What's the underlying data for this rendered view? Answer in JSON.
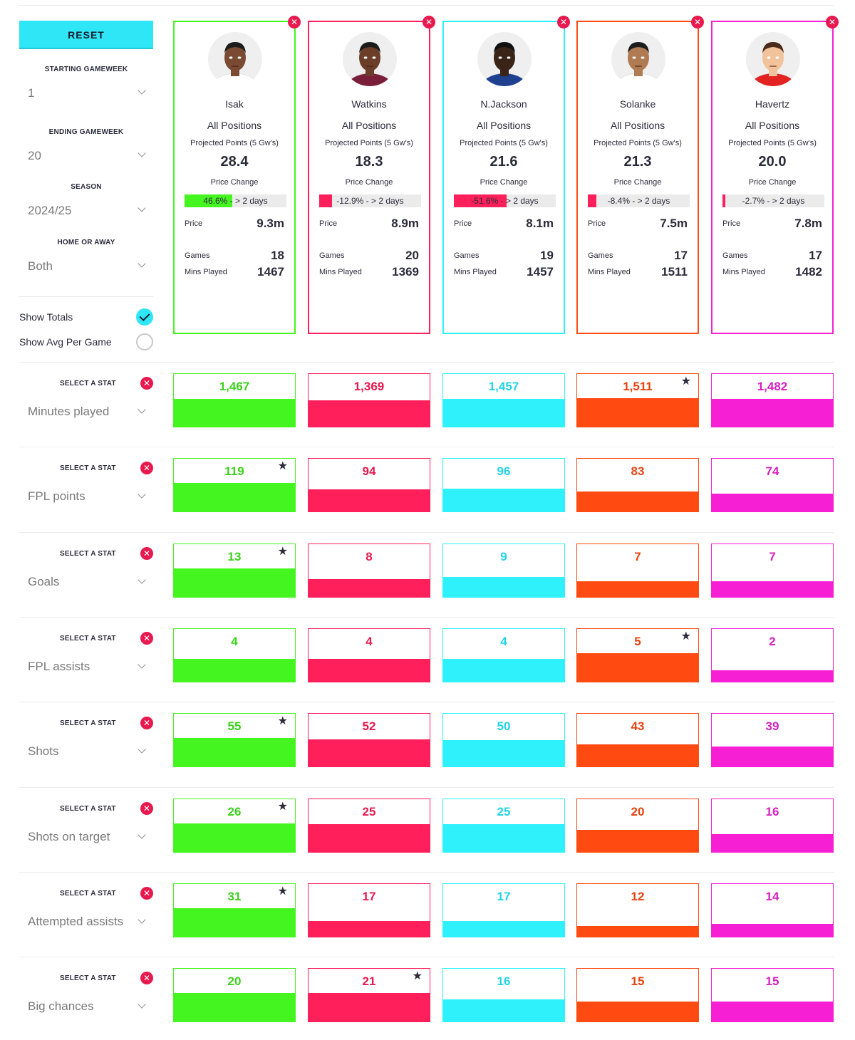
{
  "sidebar": {
    "reset_label": "RESET",
    "starting_gameweek": {
      "label": "STARTING GAMEWEEK",
      "value": "1"
    },
    "ending_gameweek": {
      "label": "ENDING GAMEWEEK",
      "value": "20"
    },
    "season": {
      "label": "SEASON",
      "value": "2024/25"
    },
    "home_or_away": {
      "label": "HOME OR AWAY",
      "value": "Both"
    },
    "show_totals": {
      "label": "Show Totals",
      "checked": true
    },
    "show_avg": {
      "label": "Show Avg Per Game",
      "checked": false
    }
  },
  "colors": {
    "green": "#44f51f",
    "red": "#ff1f5b",
    "cyan": "#2ef1fb",
    "orange": "#ff4a12",
    "magenta": "#f61fd4",
    "text_green": "#3ad21a",
    "text_red": "#e8194e",
    "text_cyan": "#22d3e6",
    "text_orange": "#e8420e",
    "text_magenta": "#d61fbf"
  },
  "labels": {
    "projected": "Projected Points (5 Gw's)",
    "price_change": "Price Change",
    "price": "Price",
    "games": "Games",
    "mins_played": "Mins Played",
    "select_stat": "SELECT A STAT"
  },
  "players": [
    {
      "name": "Isak",
      "position": "All Positions",
      "projected": "28.4",
      "price_change": "46.6% - > 2 days",
      "price_change_pct": 46.6,
      "price": "9.3m",
      "games": "18",
      "mins": "1467",
      "color": "green",
      "skin": "#7a4a32",
      "shirt": "#ffffff",
      "hair": "#1c1c1c"
    },
    {
      "name": "Watkins",
      "position": "All Positions",
      "projected": "18.3",
      "price_change": "-12.9% - > 2 days",
      "price_change_pct": -12.9,
      "price": "8.9m",
      "games": "20",
      "mins": "1369",
      "color": "red",
      "skin": "#6b3e2a",
      "shirt": "#7a1f3a",
      "hair": "#1c1c1c"
    },
    {
      "name": "N.Jackson",
      "position": "All Positions",
      "projected": "21.6",
      "price_change": "-51.6% - > 2 days",
      "price_change_pct": -51.6,
      "price": "8.1m",
      "games": "19",
      "mins": "1457",
      "color": "cyan",
      "skin": "#3a2418",
      "shirt": "#1f3f8f",
      "hair": "#111111"
    },
    {
      "name": "Solanke",
      "position": "All Positions",
      "projected": "21.3",
      "price_change": "-8.4% - > 2 days",
      "price_change_pct": -8.4,
      "price": "7.5m",
      "games": "17",
      "mins": "1511",
      "color": "orange",
      "skin": "#b07a52",
      "shirt": "#ffffff",
      "hair": "#1c1c1c"
    },
    {
      "name": "Havertz",
      "position": "All Positions",
      "projected": "20.0",
      "price_change": "-2.7% - > 2 days",
      "price_change_pct": -2.7,
      "price": "7.8m",
      "games": "17",
      "mins": "1482",
      "color": "magenta",
      "skin": "#f2c29a",
      "shirt": "#e32222",
      "hair": "#4a2a1a"
    }
  ],
  "stats": [
    {
      "name": "Minutes played",
      "values": [
        "1,467",
        "1,369",
        "1,457",
        "1,511",
        "1,482"
      ],
      "fractions": [
        0.53,
        0.51,
        0.53,
        0.55,
        0.54
      ],
      "best": 3
    },
    {
      "name": "FPL points",
      "values": [
        "119",
        "94",
        "96",
        "83",
        "74"
      ],
      "fractions": [
        0.55,
        0.43,
        0.44,
        0.38,
        0.34
      ],
      "best": 0
    },
    {
      "name": "Goals",
      "values": [
        "13",
        "8",
        "9",
        "7",
        "7"
      ],
      "fractions": [
        0.55,
        0.34,
        0.38,
        0.3,
        0.3
      ],
      "best": 0
    },
    {
      "name": "FPL assists",
      "values": [
        "4",
        "4",
        "4",
        "5",
        "2"
      ],
      "fractions": [
        0.44,
        0.44,
        0.44,
        0.55,
        0.22
      ],
      "best": 3
    },
    {
      "name": "Shots",
      "values": [
        "55",
        "52",
        "50",
        "43",
        "39"
      ],
      "fractions": [
        0.55,
        0.52,
        0.5,
        0.43,
        0.39
      ],
      "best": 0
    },
    {
      "name": "Shots on target",
      "values": [
        "26",
        "25",
        "25",
        "20",
        "16"
      ],
      "fractions": [
        0.55,
        0.53,
        0.53,
        0.42,
        0.34
      ],
      "best": 0
    },
    {
      "name": "Attempted assists",
      "values": [
        "31",
        "17",
        "17",
        "12",
        "14"
      ],
      "fractions": [
        0.55,
        0.3,
        0.3,
        0.21,
        0.25
      ],
      "best": 0
    },
    {
      "name": "Big chances",
      "values": [
        "20",
        "21",
        "16",
        "15",
        "15"
      ],
      "fractions": [
        0.55,
        0.55,
        0.42,
        0.39,
        0.39
      ],
      "best": 1
    }
  ]
}
